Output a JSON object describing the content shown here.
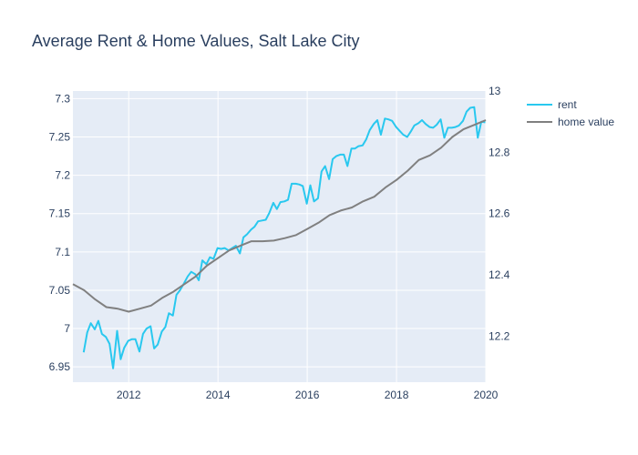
{
  "chart_data": {
    "type": "line",
    "title": "Average Rent & Home Values, Salt Lake City",
    "xlabel": "",
    "ylabel": "",
    "y2label": "",
    "xlim": [
      2010.75,
      2020.0
    ],
    "ylim": [
      6.93,
      7.31
    ],
    "y2lim": [
      12.05,
      13.0
    ],
    "x_ticks": [
      2012,
      2014,
      2016,
      2018,
      2020
    ],
    "y_ticks": [
      6.95,
      7,
      7.05,
      7.1,
      7.15,
      7.2,
      7.25,
      7.3
    ],
    "y_tick_labels": [
      "6.95",
      "7",
      "7.05",
      "7.1",
      "7.15",
      "7.2",
      "7.25",
      "7.3"
    ],
    "y2_ticks": [
      12.2,
      12.4,
      12.6,
      12.8,
      13
    ],
    "y2_tick_labels": [
      "12.2",
      "12.4",
      "12.6",
      "12.8",
      "13"
    ],
    "grid": true,
    "legend_position": "top-right",
    "series": [
      {
        "name": "rent",
        "axis": "y",
        "color": "#29c8ef",
        "x": [
          2010.99,
          2011.07,
          2011.15,
          2011.24,
          2011.32,
          2011.4,
          2011.49,
          2011.57,
          2011.65,
          2011.74,
          2011.82,
          2011.9,
          2011.99,
          2012.07,
          2012.15,
          2012.24,
          2012.32,
          2012.4,
          2012.49,
          2012.57,
          2012.65,
          2012.74,
          2012.82,
          2012.9,
          2012.99,
          2013.07,
          2013.15,
          2013.24,
          2013.32,
          2013.4,
          2013.49,
          2013.57,
          2013.65,
          2013.74,
          2013.82,
          2013.9,
          2013.99,
          2014.07,
          2014.15,
          2014.24,
          2014.32,
          2014.4,
          2014.49,
          2014.57,
          2014.65,
          2014.74,
          2014.82,
          2014.9,
          2014.99,
          2015.07,
          2015.15,
          2015.24,
          2015.32,
          2015.4,
          2015.49,
          2015.57,
          2015.65,
          2015.74,
          2015.82,
          2015.9,
          2015.99,
          2016.07,
          2016.15,
          2016.24,
          2016.32,
          2016.4,
          2016.49,
          2016.57,
          2016.65,
          2016.74,
          2016.82,
          2016.9,
          2016.99,
          2017.07,
          2017.15,
          2017.24,
          2017.32,
          2017.4,
          2017.49,
          2017.57,
          2017.65,
          2017.74,
          2017.82,
          2017.9,
          2017.99,
          2018.07,
          2018.15,
          2018.24,
          2018.32,
          2018.4,
          2018.49,
          2018.57,
          2018.65,
          2018.74,
          2018.82,
          2018.9,
          2018.99,
          2019.07,
          2019.15,
          2019.24,
          2019.32,
          2019.4,
          2019.49,
          2019.57,
          2019.65,
          2019.74,
          2019.82,
          2019.9,
          2019.99
        ],
        "y": [
          6.969,
          6.995,
          7.007,
          6.999,
          7.01,
          6.993,
          6.989,
          6.98,
          6.948,
          6.997,
          6.96,
          6.975,
          6.984,
          6.986,
          6.986,
          6.97,
          6.993,
          7.0,
          7.003,
          6.974,
          6.979,
          6.996,
          7.002,
          7.02,
          7.017,
          7.044,
          7.05,
          7.059,
          7.068,
          7.074,
          7.071,
          7.063,
          7.089,
          7.084,
          7.093,
          7.091,
          7.105,
          7.104,
          7.105,
          7.102,
          7.105,
          7.108,
          7.098,
          7.119,
          7.123,
          7.129,
          7.133,
          7.14,
          7.141,
          7.142,
          7.151,
          7.164,
          7.156,
          7.165,
          7.166,
          7.168,
          7.189,
          7.189,
          7.188,
          7.186,
          7.163,
          7.187,
          7.166,
          7.17,
          7.205,
          7.212,
          7.195,
          7.221,
          7.225,
          7.227,
          7.227,
          7.212,
          7.235,
          7.235,
          7.238,
          7.239,
          7.247,
          7.259,
          7.267,
          7.272,
          7.253,
          7.274,
          7.273,
          7.271,
          7.263,
          7.258,
          7.253,
          7.25,
          7.257,
          7.265,
          7.268,
          7.272,
          7.267,
          7.263,
          7.262,
          7.266,
          7.273,
          7.249,
          7.262,
          7.262,
          7.263,
          7.265,
          7.271,
          7.283,
          7.288,
          7.289,
          7.249,
          7.27,
          7.269
        ]
      },
      {
        "name": "home value",
        "axis": "y2",
        "color": "#808080",
        "x": [
          2010.75,
          2011.0,
          2011.25,
          2011.5,
          2011.75,
          2012.0,
          2012.25,
          2012.5,
          2012.75,
          2013.0,
          2013.25,
          2013.5,
          2013.75,
          2014.0,
          2014.25,
          2014.5,
          2014.75,
          2015.0,
          2015.25,
          2015.5,
          2015.75,
          2016.0,
          2016.25,
          2016.5,
          2016.75,
          2017.0,
          2017.25,
          2017.5,
          2017.75,
          2018.0,
          2018.25,
          2018.5,
          2018.75,
          2019.0,
          2019.25,
          2019.5,
          2019.75,
          2020.0
        ],
        "y": [
          12.37,
          12.35,
          12.32,
          12.295,
          12.29,
          12.28,
          12.29,
          12.3,
          12.325,
          12.345,
          12.37,
          12.395,
          12.43,
          12.455,
          12.48,
          12.495,
          12.51,
          12.51,
          12.512,
          12.52,
          12.53,
          12.55,
          12.57,
          12.595,
          12.61,
          12.62,
          12.64,
          12.655,
          12.685,
          12.71,
          12.74,
          12.775,
          12.79,
          12.815,
          12.85,
          12.875,
          12.89,
          12.905
        ]
      }
    ]
  }
}
